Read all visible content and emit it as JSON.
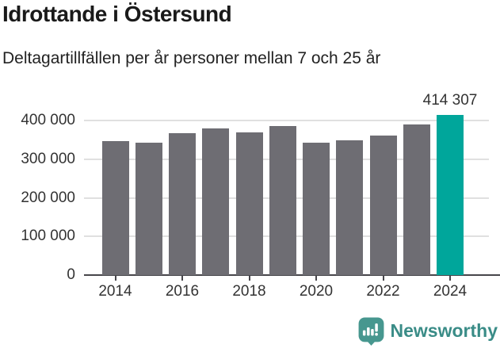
{
  "header": {
    "title": "Idrottande i Östersund",
    "subtitle": "Deltagartillfällen per år personer mellan 7 och 25 år"
  },
  "chart_data": {
    "type": "bar",
    "title": "Idrottande i Östersund",
    "subtitle": "Deltagartillfällen per år personer mellan 7 och 25 år",
    "categories": [
      2014,
      2015,
      2016,
      2017,
      2018,
      2019,
      2020,
      2021,
      2022,
      2023,
      2024
    ],
    "values": [
      348000,
      344000,
      368000,
      380000,
      371000,
      386000,
      344000,
      350000,
      361000,
      391000,
      414307
    ],
    "highlight_index": 10,
    "highlight_label": "414 307",
    "xlabel": "",
    "ylabel": "",
    "ylim": [
      0,
      440000
    ],
    "yticks": [
      0,
      100000,
      200000,
      300000,
      400000
    ],
    "ytick_labels": [
      "0",
      "100 000",
      "200 000",
      "300 000",
      "400 000"
    ],
    "xtick_years": [
      2014,
      2016,
      2018,
      2020,
      2022,
      2024
    ],
    "grid": "horizontal",
    "legend": "none",
    "colors": {
      "bar": "#6e6d73",
      "highlight": "#00a69b",
      "gridline": "#e0e0e0",
      "axis": "#47464b",
      "tick_text": "#333333"
    }
  },
  "footer": {
    "brand": "Newsworthy",
    "brand_color": "#3a8c87",
    "logo_icon": "bar-chart-speech-bubble-icon",
    "logo_color": "#47978f"
  }
}
